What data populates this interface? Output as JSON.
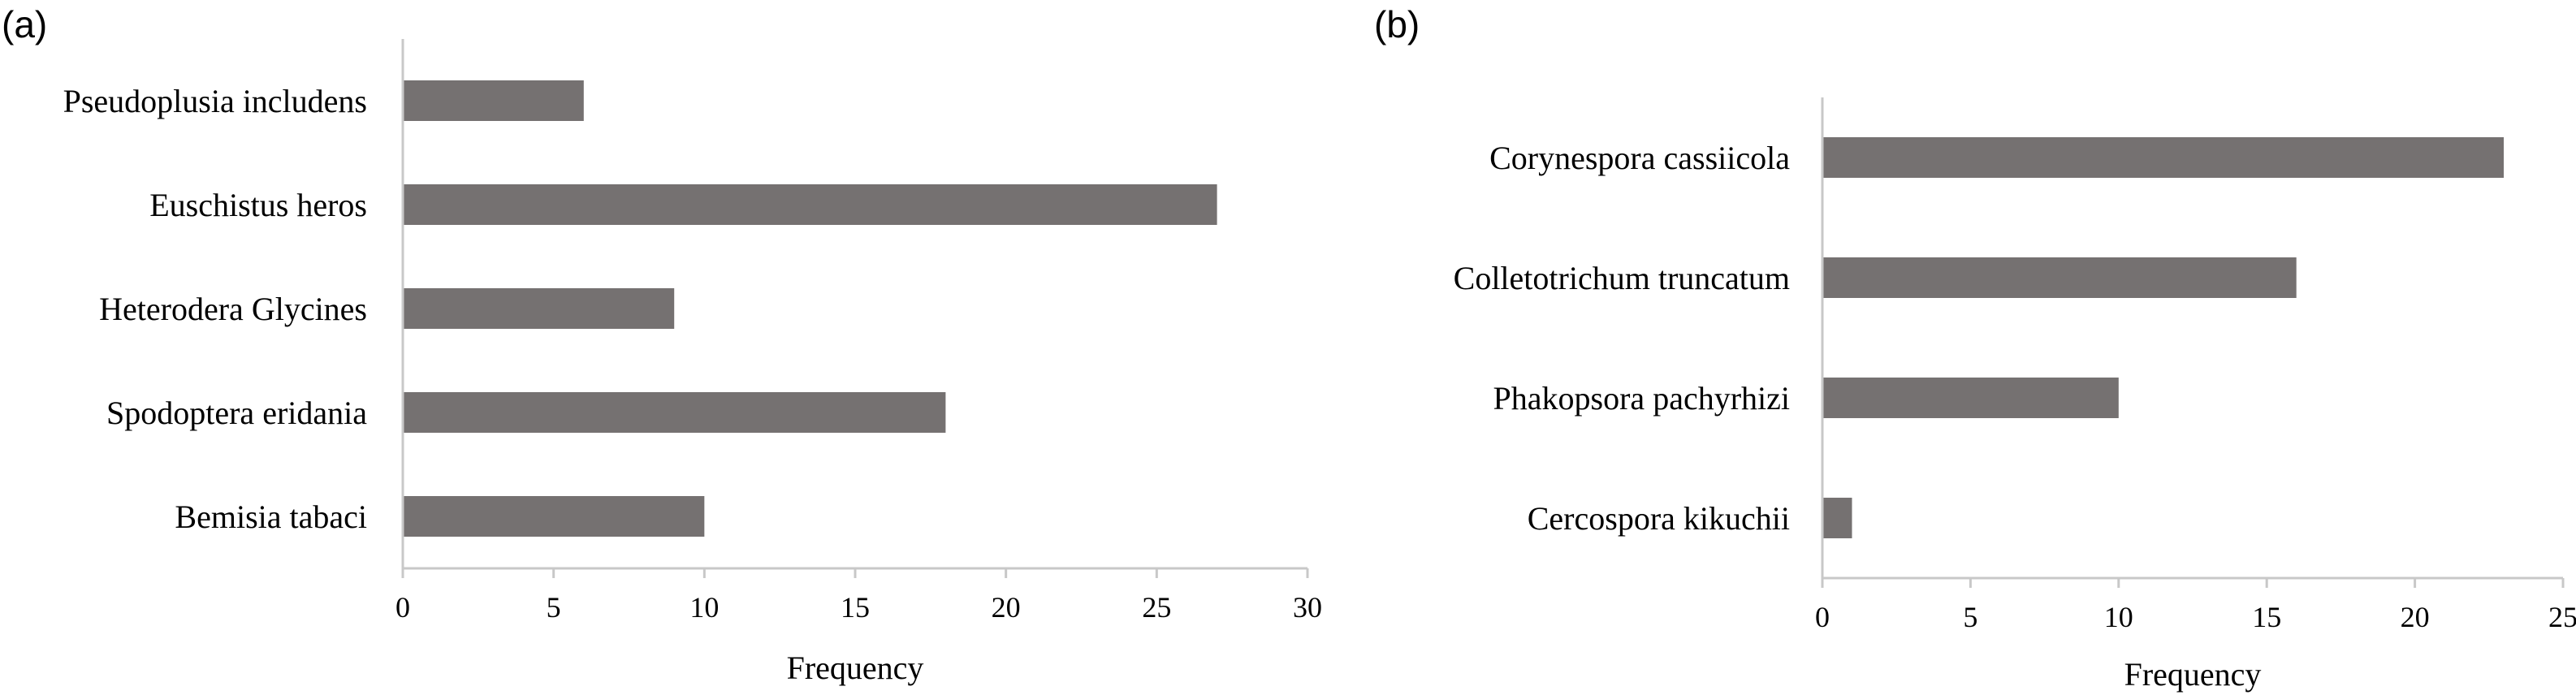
{
  "bar_color": "#757171",
  "axis_color": "#c8c8c8",
  "chart_data": [
    {
      "type": "bar",
      "orientation": "horizontal",
      "panel_label": "(a)",
      "categories": [
        "Pseudoplusia includens",
        "Euschistus heros",
        "Heterodera Glycines",
        "Spodoptera eridania",
        "Bemisia tabaci"
      ],
      "values": [
        6,
        27,
        9,
        18,
        10
      ],
      "xlabel": "Frequency",
      "ylabel": "",
      "xlim": [
        0,
        30
      ],
      "xticks": [
        "0",
        "5",
        "10",
        "15",
        "20",
        "25",
        "30"
      ],
      "grid": false,
      "legend": "none"
    },
    {
      "type": "bar",
      "orientation": "horizontal",
      "panel_label": "(b)",
      "categories": [
        "Corynespora cassiicola",
        "Colletotrichum truncatum",
        "Phakopsora pachyrhizi",
        "Cercospora kikuchii"
      ],
      "values": [
        23,
        16,
        10,
        1
      ],
      "xlabel": "Frequency",
      "ylabel": "",
      "xlim": [
        0,
        25
      ],
      "xticks": [
        "0",
        "5",
        "10",
        "15",
        "20",
        "25"
      ],
      "grid": false,
      "legend": "none"
    }
  ]
}
